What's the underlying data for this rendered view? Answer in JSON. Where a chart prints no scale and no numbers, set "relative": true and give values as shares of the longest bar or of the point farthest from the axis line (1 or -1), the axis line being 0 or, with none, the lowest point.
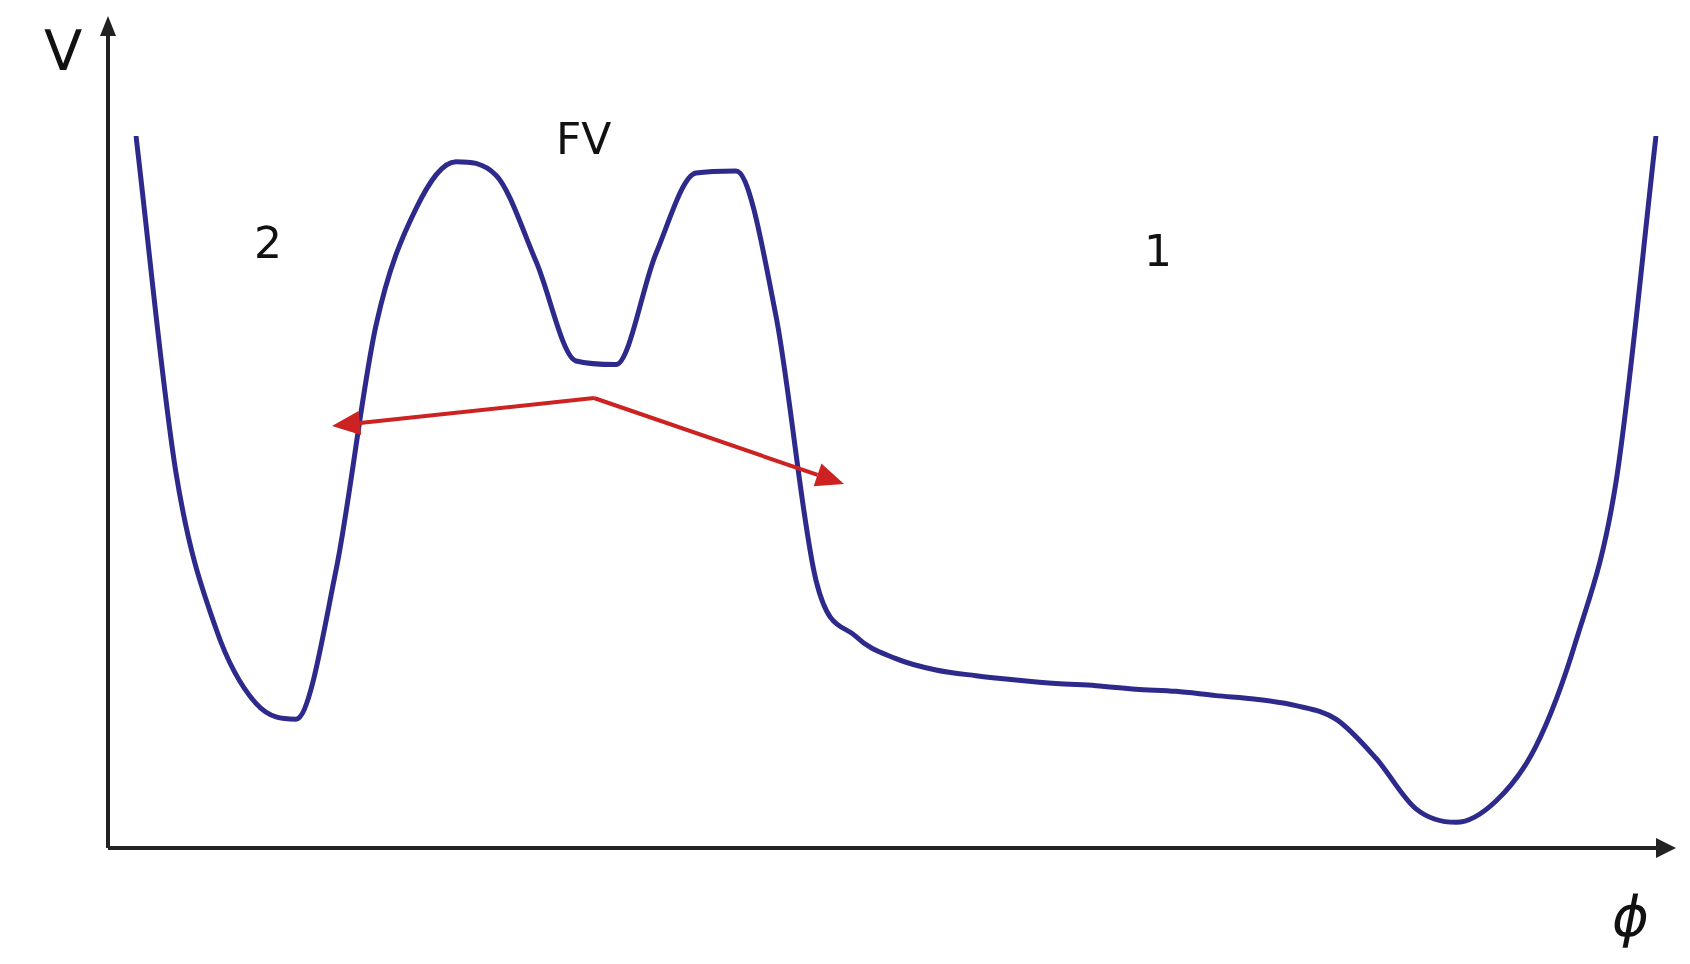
{
  "chart_data": {
    "type": "line",
    "relative": true,
    "xlabel": "ϕ",
    "ylabel": "V",
    "annotations": [
      "2",
      "FV",
      "1"
    ],
    "tick_labels": false,
    "grid": false,
    "legend": false,
    "marker": "none",
    "line_style": "solid",
    "categories": [
      null,
      null,
      null,
      null,
      null,
      null,
      null,
      null,
      null,
      null,
      null,
      null,
      null,
      null,
      null,
      null,
      null,
      null,
      null,
      null,
      null,
      null,
      null,
      null,
      null,
      null,
      null,
      null,
      null,
      null,
      null,
      null,
      null,
      null,
      null,
      null,
      null,
      null,
      null
    ],
    "series": [
      {
        "color": "#2e2a8c",
        "values": [
          1.0,
          0.527,
          0.308,
          0.203,
          0.181,
          0.39,
          0.734,
          0.898,
          0.964,
          0.945,
          0.824,
          0.684,
          0.679,
          0.835,
          0.948,
          0.951,
          0.747,
          0.376,
          0.297,
          0.266,
          0.25,
          0.242,
          0.236,
          0.231,
          0.228,
          0.223,
          0.22,
          0.214,
          0.209,
          0.2,
          0.181,
          0.126,
          0.055,
          0.036,
          0.066,
          0.143,
          0.291,
          0.514,
          1.0
        ]
      }
    ]
  }
}
